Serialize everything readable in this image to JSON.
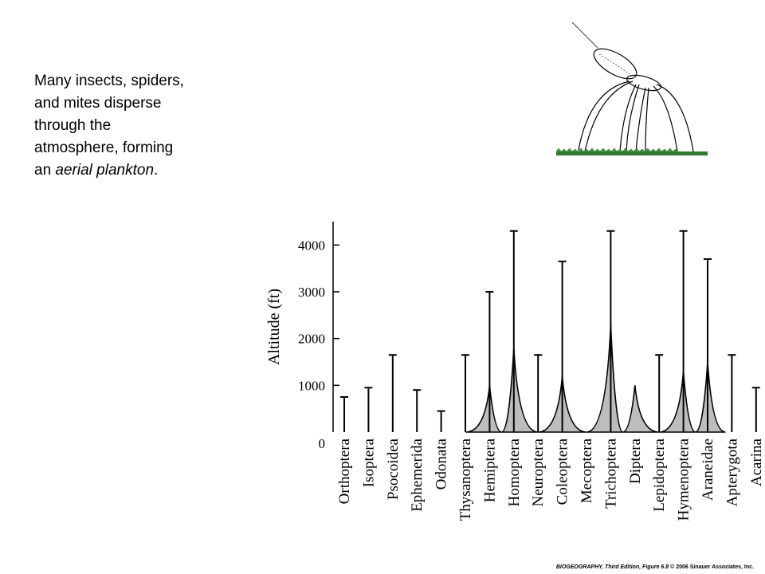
{
  "caption": {
    "lines": [
      "Many insects, spiders,",
      "and mites disperse",
      "through the",
      "atmosphere, forming"
    ],
    "last_prefix": "an ",
    "last_italic": "aerial plankton",
    "last_suffix": "."
  },
  "footer": {
    "book": "BIOGEOGRAPHY, Third Edition, Figure 6.8",
    "rest": " © 2006 Sinauer Associates, Inc."
  },
  "chart_data": {
    "type": "bar",
    "ylabel": "Altitude (ft)",
    "ylim": [
      0,
      4500
    ],
    "yticks": [
      0,
      1000,
      2000,
      3000,
      4000
    ],
    "grid": false,
    "categories": [
      "Orthoptera",
      "Isoptera",
      "Psocoidea",
      "Ephemerida",
      "Odonata",
      "Thysanoptera",
      "Hemiptera",
      "Homoptera",
      "Neuroptera",
      "Coleoptera",
      "Mecoptera",
      "Trichoptera",
      "Diptera",
      "Lepidoptera",
      "Hymenoptera",
      "Araneidae",
      "Apterygota",
      "Acarina"
    ],
    "series": [
      {
        "values": [
          750,
          950,
          1650,
          900,
          450,
          1650,
          3000,
          4300,
          1650,
          3650,
          0,
          4300,
          0,
          1650,
          4300,
          3700,
          1650,
          950
        ]
      },
      {
        "values": [
          0,
          0,
          0,
          0,
          0,
          0,
          1000,
          1800,
          0,
          1200,
          0,
          2300,
          1000,
          0,
          1300,
          1500,
          0,
          0
        ]
      }
    ],
    "x_positions": [
      1,
      2,
      3,
      4,
      5,
      6,
      7,
      8,
      9,
      10,
      11,
      12,
      13,
      14,
      15,
      16,
      17,
      18
    ]
  }
}
